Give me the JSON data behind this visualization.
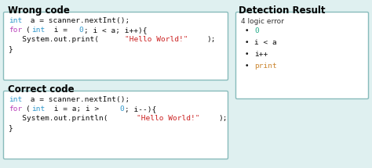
{
  "bg_color": "#dff0f0",
  "wrong_title": "Wrong code",
  "correct_title": "Correct code",
  "detection_title": "Detection Result",
  "box_edge_color": "#88bbbb",
  "title_fontsize": 8.5,
  "code_fontsize": 6.8,
  "detect_header_fs": 6.5,
  "detect_item_fs": 6.8,
  "wrong_segs": [
    [
      [
        "int",
        "#3399cc"
      ],
      [
        " a = scanner.nextInt();",
        "#111111"
      ]
    ],
    [
      [
        "for",
        "#bb44bb"
      ],
      [
        "(",
        "#111111"
      ],
      [
        "int",
        "#3399cc"
      ],
      [
        " i = ",
        "#111111"
      ],
      [
        "0",
        "#3399cc"
      ],
      [
        "; i < a; i++){",
        "#111111"
      ]
    ],
    [
      [
        "   System.out.print(",
        "#111111"
      ],
      [
        "\"Hello World!\"",
        "#cc2222"
      ],
      [
        ");",
        "#111111"
      ]
    ],
    [
      [
        "}",
        "#111111"
      ]
    ]
  ],
  "correct_segs": [
    [
      [
        "int",
        "#3399cc"
      ],
      [
        " a = scanner.nextInt();",
        "#111111"
      ]
    ],
    [
      [
        "for",
        "#bb44bb"
      ],
      [
        "(",
        "#111111"
      ],
      [
        "int",
        "#3399cc"
      ],
      [
        " i = a; i > ",
        "#111111"
      ],
      [
        "0",
        "#3399cc"
      ],
      [
        "; i--){",
        "#111111"
      ]
    ],
    [
      [
        "   System.out.println(",
        "#111111"
      ],
      [
        "\"Hello World!\"",
        "#cc2222"
      ],
      [
        ");",
        "#111111"
      ]
    ],
    [
      [
        "}",
        "#111111"
      ]
    ]
  ],
  "detection_header": "4 logic error",
  "detection_items": [
    {
      "text": "0",
      "text_color": "#22aa88",
      "bullet_color": "#111111"
    },
    {
      "text": "i < a",
      "text_color": "#111111",
      "bullet_color": "#111111"
    },
    {
      "text": "i++",
      "text_color": "#111111",
      "bullet_color": "#111111"
    },
    {
      "text": "print",
      "text_color": "#cc8833",
      "bullet_color": "#111111"
    }
  ]
}
